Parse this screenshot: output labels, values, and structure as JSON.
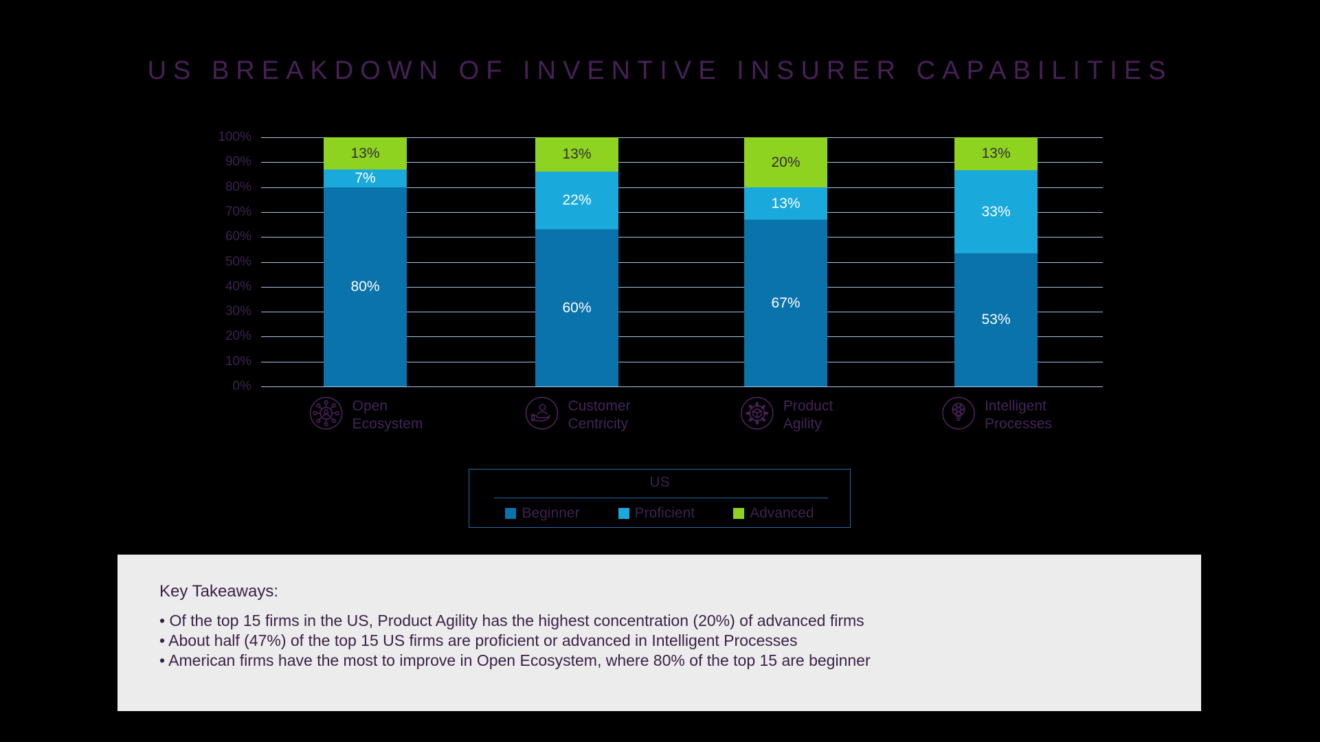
{
  "page": {
    "background": "#000000"
  },
  "chart_data": {
    "type": "bar",
    "variant": "stacked-100-percent-column",
    "title": "US BREAKDOWN OF INVENTIVE INSURER CAPABILITIES",
    "title_color": "#472057",
    "categories": [
      "Open Ecosystem",
      "Customer Centricity",
      "Product Agility",
      "Intelligent Processes"
    ],
    "category_label_lines": [
      [
        "Open",
        "Ecosystem"
      ],
      [
        "Customer",
        "Centricity"
      ],
      [
        "Product",
        "Agility"
      ],
      [
        "Intelligent",
        "Processes"
      ]
    ],
    "category_icons": [
      "network-nodes-icon",
      "hand-holding-person-icon",
      "gear-cube-icon",
      "lightbulb-gear-icon"
    ],
    "series": [
      {
        "name": "Beginner",
        "color": "#0b73ab",
        "label_color": "#ffffff",
        "values": [
          80,
          60,
          67,
          53
        ]
      },
      {
        "name": "Proficient",
        "color": "#1aa9db",
        "label_color": "#ffffff",
        "values": [
          7,
          22,
          13,
          33
        ]
      },
      {
        "name": "Advanced",
        "color": "#8fd321",
        "label_color": "#332b3a",
        "values": [
          13,
          13,
          20,
          13
        ]
      }
    ],
    "value_suffix": "%",
    "y_ticks": [
      "0%",
      "10%",
      "20%",
      "30%",
      "40%",
      "50%",
      "60%",
      "70%",
      "80%",
      "90%",
      "100%"
    ],
    "ylim": [
      0,
      100
    ],
    "grid": "horizontal",
    "gridline_color": "#a9c7e8",
    "axis_label_color": "#3e2150",
    "icon_stroke_color": "#472057",
    "legend": {
      "group_label": "US",
      "entries": [
        "Beginner",
        "Proficient",
        "Advanced"
      ],
      "border_color": "#1f6fad",
      "position": "below-chart"
    }
  },
  "takeaways": {
    "heading": "Key Takeaways:",
    "bullets": [
      "• Of the top 15 firms in the US, Product Agility has the highest concentration (20%) of advanced firms",
      "• About half (47%) of the top 15 US firms are proficient or advanced in Intelligent Processes",
      "• American firms have the most to improve in Open Ecosystem, where 80% of the top 15 are beginner"
    ],
    "background": "#ececec",
    "text_color": "#3b2148"
  }
}
